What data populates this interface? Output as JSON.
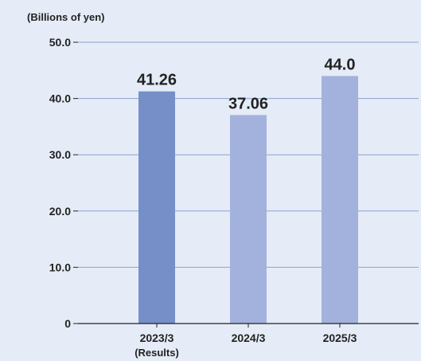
{
  "chart_data": {
    "type": "bar",
    "unit_label": "(Billions of yen)",
    "categories": [
      "2023/3",
      "2024/3",
      "2025/3"
    ],
    "category_sublabels": [
      "(Results)",
      "",
      ""
    ],
    "values": [
      41.26,
      37.06,
      44.0
    ],
    "value_labels": [
      "41.26",
      "37.06",
      "44.0"
    ],
    "bar_colors": [
      "#768fc8",
      "#a3b2dc",
      "#a3b2dc"
    ],
    "yticks": [
      "0",
      "10.0",
      "20.0",
      "30.0",
      "40.0",
      "50.0"
    ],
    "ylim": [
      0,
      50
    ],
    "grid": true,
    "background": "#e5ecf7",
    "grid_color": "#8aa2d2"
  }
}
